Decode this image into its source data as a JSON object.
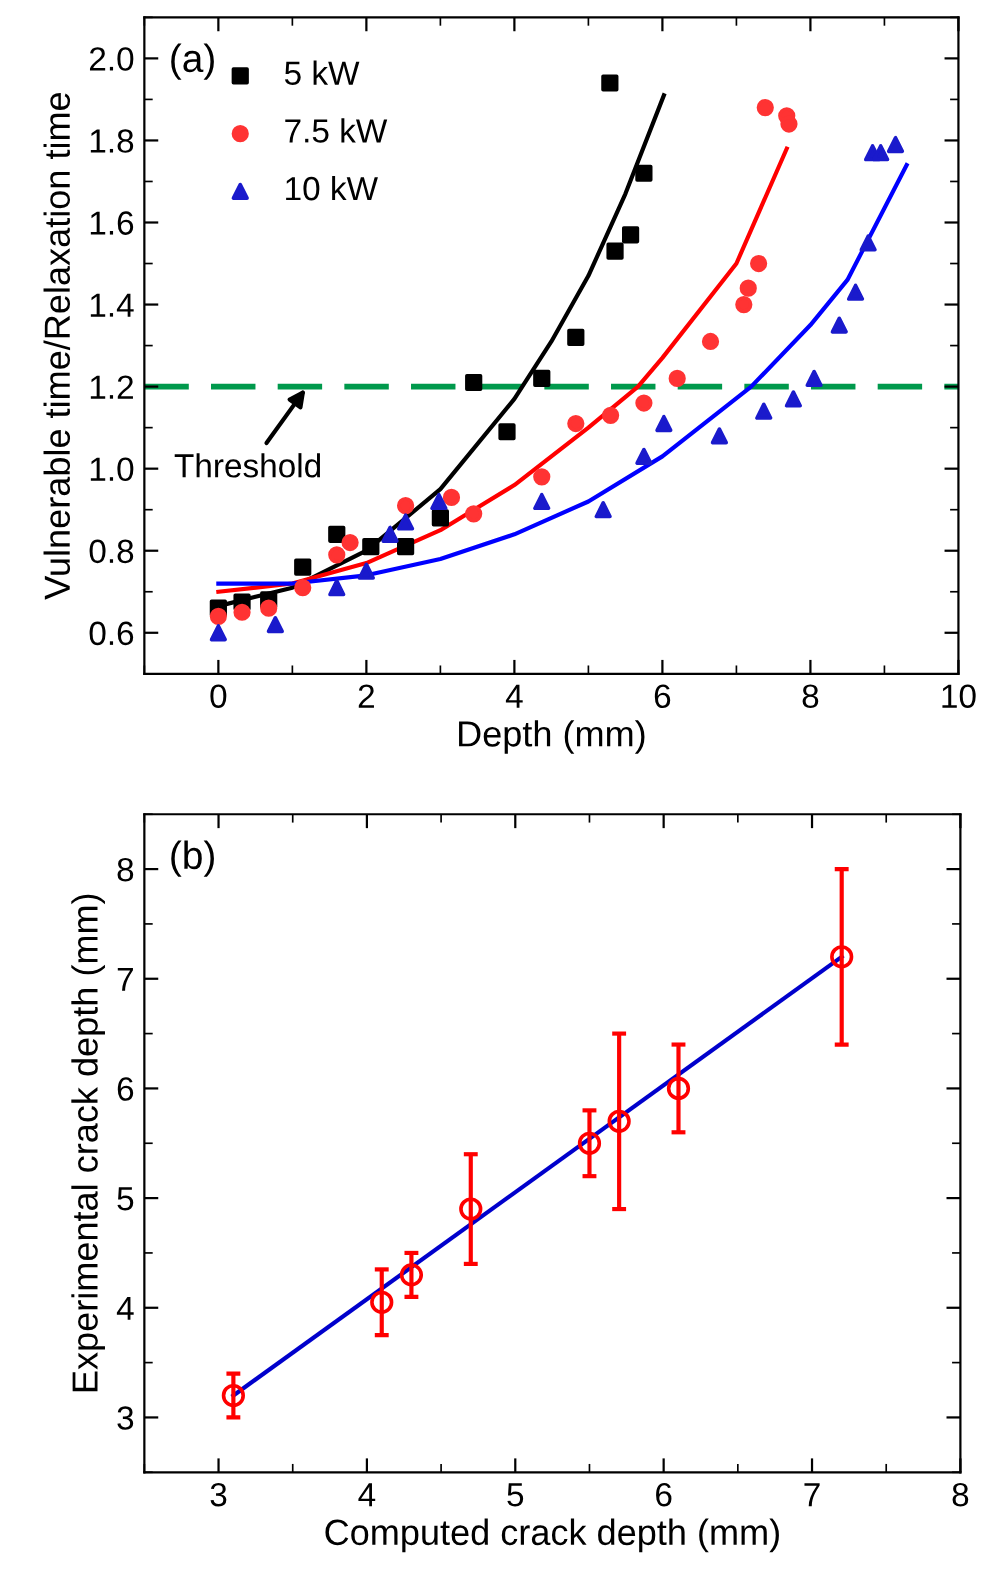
{
  "chart_data": [
    {
      "type": "scatter",
      "xlabel": "Depth (mm)",
      "ylabel": "Vulnerable time/Relaxation time",
      "xlim": [
        -1,
        10
      ],
      "ylim": [
        0.5,
        2.1
      ],
      "xticks": [
        0,
        2,
        4,
        6,
        8,
        10
      ],
      "yticks": [
        {
          "value": 0.6,
          "label": "0.6"
        },
        {
          "value": 0.8,
          "label": "0.8"
        },
        {
          "value": 1.0,
          "label": "1.0"
        },
        {
          "value": 1.2,
          "label": "1.2"
        },
        {
          "value": 1.4,
          "label": "1.4"
        },
        {
          "value": 1.6,
          "label": "1.6"
        },
        {
          "value": 1.8,
          "label": "1.8"
        },
        {
          "value": 2.0,
          "label": "2.0"
        }
      ],
      "grid": false,
      "legend": "top left",
      "annotations": [
        "(a)",
        {
          "text": "Threshold",
          "x": 1.2,
          "y": 1.2
        }
      ],
      "ref_lines": [
        {
          "axis": "y",
          "value": 1.2,
          "color": "#00994c",
          "line_style": "dashed"
        }
      ],
      "series": [
        {
          "name": "5 kW",
          "color": "#000000",
          "marker": "square",
          "x": [
            0,
            0.32,
            0.68,
            1.14,
            1.6,
            2.06,
            2.53,
            3.0,
            3.45,
            3.9,
            4.37,
            4.83,
            5.29,
            5.36,
            5.57,
            5.75
          ],
          "values": [
            0.66,
            0.675,
            0.68,
            0.76,
            0.84,
            0.81,
            0.81,
            0.88,
            1.21,
            1.09,
            1.22,
            1.32,
            1.94,
            1.53,
            1.57,
            1.72
          ]
        },
        {
          "name": "7.5 kW",
          "color": "#ff3333",
          "marker": "circle",
          "x": [
            0,
            0.32,
            0.68,
            1.14,
            1.6,
            1.78,
            2.53,
            3.15,
            3.45,
            4.37,
            4.83,
            5.3,
            5.75,
            6.2,
            6.65,
            7.1,
            7.16,
            7.3,
            7.39,
            7.68,
            7.71
          ],
          "values": [
            0.64,
            0.65,
            0.66,
            0.71,
            0.79,
            0.82,
            0.91,
            0.93,
            0.89,
            0.98,
            1.11,
            1.13,
            1.16,
            1.22,
            1.31,
            1.4,
            1.44,
            1.5,
            1.88,
            1.86,
            1.84
          ]
        },
        {
          "name": "10 kW",
          "color": "#1a1acc",
          "marker": "triangle",
          "x": [
            0,
            0.77,
            1.6,
            2.0,
            2.32,
            2.53,
            2.98,
            4.37,
            5.2,
            5.75,
            6.02,
            6.77,
            7.37,
            7.77,
            8.05,
            8.39,
            8.61,
            8.78,
            8.84,
            8.95,
            9.15
          ],
          "values": [
            0.6,
            0.62,
            0.71,
            0.75,
            0.84,
            0.87,
            0.92,
            0.92,
            0.9,
            1.03,
            1.11,
            1.08,
            1.14,
            1.17,
            1.22,
            1.35,
            1.43,
            1.55,
            1.77,
            1.77,
            1.79
          ]
        },
        {
          "type": "line",
          "color": "#000000",
          "x": [
            0,
            1,
            2,
            3,
            4,
            4.5,
            5,
            5.5,
            6.02
          ],
          "values": [
            0.665,
            0.71,
            0.8,
            0.95,
            1.17,
            1.31,
            1.47,
            1.67,
            1.91
          ]
        },
        {
          "type": "line",
          "color": "#ff0000",
          "x": [
            0,
            1,
            2,
            3,
            4,
            5,
            5.67,
            6,
            7,
            7.68
          ],
          "values": [
            0.7,
            0.72,
            0.77,
            0.85,
            0.96,
            1.1,
            1.2,
            1.27,
            1.5,
            1.78
          ]
        },
        {
          "type": "line",
          "color": "#0000ff",
          "x": [
            0,
            1,
            2,
            3,
            4,
            5,
            6,
            7.2,
            8,
            8.5,
            9.3
          ],
          "values": [
            0.72,
            0.72,
            0.74,
            0.78,
            0.84,
            0.92,
            1.03,
            1.2,
            1.35,
            1.46,
            1.74
          ]
        }
      ]
    },
    {
      "type": "scatter",
      "xlabel": "Computed crack depth (mm)",
      "ylabel": "Experimental crack depth (mm)",
      "xlim": [
        2.5,
        8
      ],
      "ylim": [
        2.5,
        8.5
      ],
      "xticks": [
        3,
        4,
        5,
        6,
        7,
        8
      ],
      "yticks": [
        3,
        4,
        5,
        6,
        7,
        8
      ],
      "grid": false,
      "annotations": [
        "(b)"
      ],
      "series": [
        {
          "color": "#ff0000",
          "marker": "circle",
          "x": [
            3.1,
            4.1,
            4.3,
            4.7,
            5.5,
            5.7,
            6.1,
            7.2
          ],
          "values": [
            3.2,
            4.05,
            4.3,
            4.9,
            5.5,
            5.7,
            6.0,
            7.2
          ],
          "errors": [
            [
              3.0,
              3.4
            ],
            [
              3.75,
              4.35
            ],
            [
              4.1,
              4.5
            ],
            [
              4.4,
              5.4
            ],
            [
              5.2,
              5.8
            ],
            [
              4.9,
              6.5
            ],
            [
              5.6,
              6.4
            ],
            [
              6.4,
              8.0
            ]
          ]
        },
        {
          "type": "line",
          "color": "#0000cc",
          "x": [
            3.1,
            7.2
          ],
          "values": [
            3.2,
            7.2
          ]
        }
      ]
    }
  ]
}
